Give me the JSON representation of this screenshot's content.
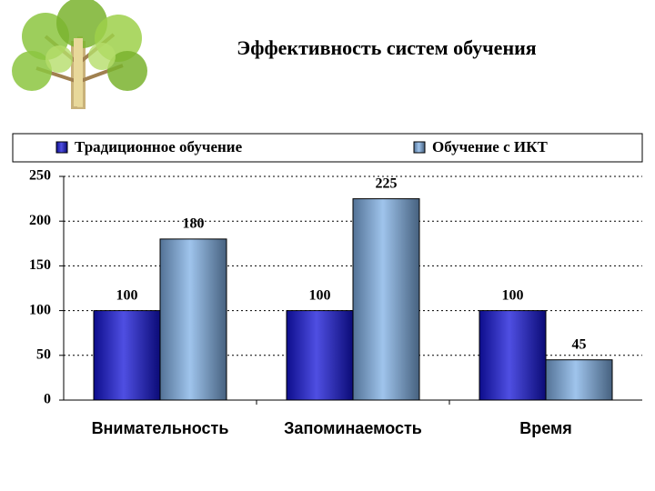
{
  "chart_data": {
    "type": "bar",
    "title": "Эффективность систем обучения",
    "categories": [
      "Внимательность",
      "Запоминаемость",
      "Время"
    ],
    "series": [
      {
        "name": "Традиционное обучение",
        "color": "#1414d8",
        "values": [
          100,
          100,
          100
        ]
      },
      {
        "name": "Обучение с ИКТ",
        "color": "#7fb0e6",
        "values": [
          180,
          225,
          45
        ]
      }
    ],
    "ylim": [
      0,
      250
    ],
    "yticks": [
      0,
      50,
      100,
      150,
      200,
      250
    ],
    "grid": true,
    "legend": "top"
  }
}
